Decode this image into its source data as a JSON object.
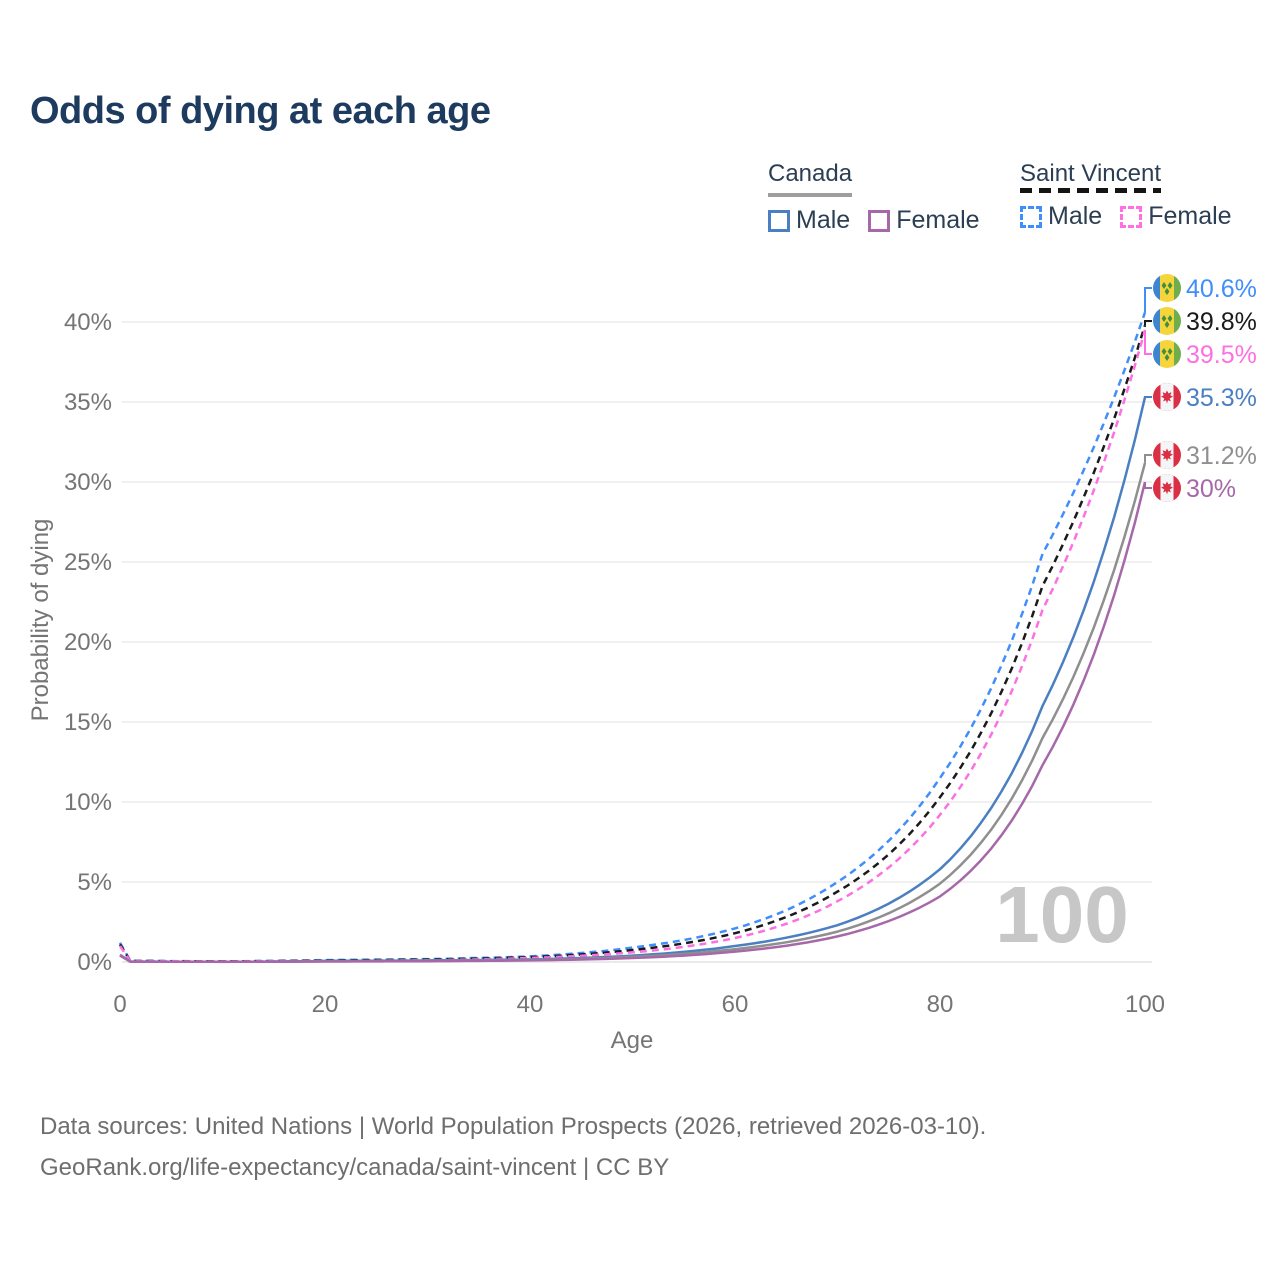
{
  "title": "Odds of dying at each age",
  "legend": {
    "canada": {
      "label": "Canada",
      "male_label": "Male",
      "female_label": "Female",
      "underline_color": "#9e9e9e",
      "underline_style": "solid"
    },
    "saint_vincent": {
      "label": "Saint Vincent",
      "male_label": "Male",
      "female_label": "Female",
      "underline_color": "#141414",
      "underline_style": "dashed"
    }
  },
  "footer": {
    "line1": "Data sources: United Nations | World Population Prospects (2026, retrieved 2026-03-10).",
    "line2": "GeoRank.org/life-expectancy/canada/saint-vincent | CC BY"
  },
  "chart_data": {
    "type": "line",
    "title": "Odds of dying at each age",
    "xlabel": "Age",
    "ylabel": "Probability of dying",
    "watermark": "100",
    "x_ticks": [
      0,
      20,
      40,
      60,
      80,
      100
    ],
    "y_ticks_percent": [
      0,
      5,
      10,
      15,
      20,
      25,
      30,
      35,
      40
    ],
    "xlim": [
      0,
      100
    ],
    "ylim_percent": [
      0,
      42
    ],
    "grid": true,
    "legend_position": "top-right",
    "ages": [
      0,
      1,
      10,
      20,
      30,
      40,
      50,
      60,
      70,
      80,
      90,
      100
    ],
    "series": [
      {
        "id": "sv_male",
        "country": "Saint Vincent",
        "sex": "Male",
        "color": "#3f8efc",
        "dashed": true,
        "flag": "sv",
        "end_label": "40.6%",
        "end_value_percent": 40.6,
        "values_percent": [
          1.2,
          0.08,
          0.04,
          0.12,
          0.18,
          0.35,
          0.9,
          2.1,
          5.0,
          11.5,
          25.5,
          40.6
        ]
      },
      {
        "id": "sv_both",
        "country": "Saint Vincent",
        "sex": "Both sexes",
        "color": "#1a1a1a",
        "dashed": true,
        "flag": "sv",
        "end_label": "39.8%",
        "end_value_percent": 39.8,
        "values_percent": [
          1.1,
          0.07,
          0.035,
          0.1,
          0.15,
          0.3,
          0.75,
          1.8,
          4.4,
          10.3,
          23.5,
          39.8
        ]
      },
      {
        "id": "sv_female",
        "country": "Saint Vincent",
        "sex": "Female",
        "color": "#fd6fe2",
        "dashed": true,
        "flag": "sv",
        "end_label": "39.5%",
        "end_value_percent": 39.5,
        "values_percent": [
          1.0,
          0.06,
          0.03,
          0.07,
          0.11,
          0.25,
          0.6,
          1.5,
          3.8,
          9.2,
          22.0,
          39.5
        ]
      },
      {
        "id": "ca_male",
        "country": "Canada",
        "sex": "Male",
        "color": "#4a7fc1",
        "dashed": false,
        "flag": "ca",
        "end_label": "35.3%",
        "end_value_percent": 35.3,
        "values_percent": [
          0.45,
          0.03,
          0.012,
          0.07,
          0.1,
          0.16,
          0.4,
          1.0,
          2.3,
          5.8,
          16.0,
          35.3
        ]
      },
      {
        "id": "ca_both",
        "country": "Canada",
        "sex": "Both sexes",
        "color": "#8f8f8f",
        "dashed": false,
        "flag": "ca",
        "end_label": "31.2%",
        "end_value_percent": 31.2,
        "values_percent": [
          0.42,
          0.025,
          0.01,
          0.05,
          0.08,
          0.13,
          0.32,
          0.8,
          1.9,
          4.9,
          14.0,
          31.2
        ]
      },
      {
        "id": "ca_female",
        "country": "Canada",
        "sex": "Female",
        "color": "#a668a8",
        "dashed": false,
        "flag": "ca",
        "end_label": "30%",
        "end_value_percent": 30.0,
        "values_percent": [
          0.4,
          0.02,
          0.009,
          0.03,
          0.05,
          0.1,
          0.25,
          0.65,
          1.6,
          4.1,
          12.3,
          30.0
        ]
      }
    ]
  }
}
